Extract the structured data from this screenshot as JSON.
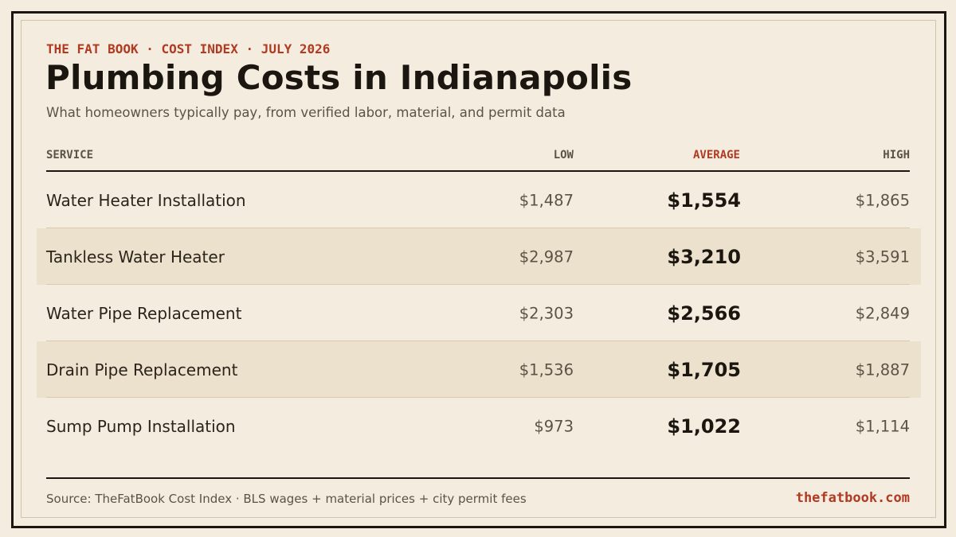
{
  "eyebrow": "THE FAT BOOK · COST INDEX · JULY 2026",
  "title": "Plumbing Costs in Indianapolis",
  "subtitle": "What homeowners typically pay, from verified labor, material, and permit data",
  "table": {
    "headers": {
      "service": "SERVICE",
      "low": "LOW",
      "average": "AVERAGE",
      "high": "HIGH"
    },
    "rows": [
      {
        "service": "Water Heater Installation",
        "low": "$1,487",
        "average": "$1,554",
        "high": "$1,865"
      },
      {
        "service": "Tankless Water Heater",
        "low": "$2,987",
        "average": "$3,210",
        "high": "$3,591"
      },
      {
        "service": "Water Pipe Replacement",
        "low": "$2,303",
        "average": "$2,566",
        "high": "$2,849"
      },
      {
        "service": "Drain Pipe Replacement",
        "low": "$1,536",
        "average": "$1,705",
        "high": "$1,887"
      },
      {
        "service": "Sump Pump Installation",
        "low": "$973",
        "average": "$1,022",
        "high": "$1,114"
      }
    ]
  },
  "footer": {
    "source": "Source: TheFatBook Cost Index · BLS wages + material prices + city permit fees",
    "site": "thefatbook.com"
  },
  "colors": {
    "background": "#f4ecdf",
    "accent": "#b03a22",
    "ink": "#1c1610",
    "muted": "#5c5346",
    "row_shade": "#ece1cd"
  }
}
